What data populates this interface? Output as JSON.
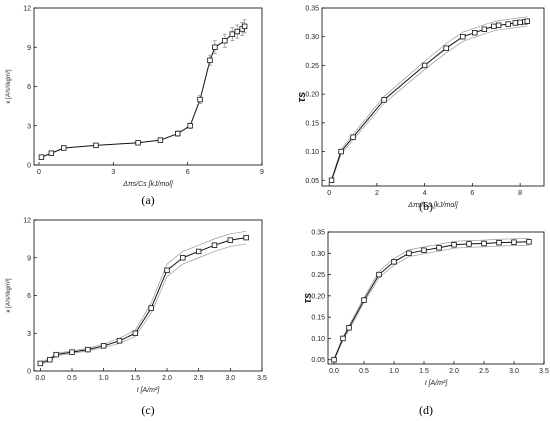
{
  "chart_data": [
    {
      "id": "a",
      "type": "line",
      "panel_label": "(a)",
      "xlabel": "Δπs/Cs [kJ/mol]",
      "ylabel": "κ [A²s³/kgm³]",
      "xlim": [
        -0.2,
        9
      ],
      "ylim": [
        0,
        12
      ],
      "xticks": [
        0,
        3,
        6,
        9
      ],
      "yticks": [
        0,
        3,
        6,
        9,
        12
      ],
      "x": [
        0.1,
        0.5,
        1.0,
        2.3,
        4.0,
        4.9,
        5.6,
        6.1,
        6.5,
        6.9,
        7.1,
        7.5,
        7.8,
        8.0,
        8.2,
        8.3
      ],
      "values": [
        0.6,
        0.9,
        1.3,
        1.5,
        1.7,
        1.9,
        2.4,
        3.0,
        5.0,
        8.0,
        9.0,
        9.5,
        10.0,
        10.2,
        10.4,
        10.6
      ],
      "band": [
        0.1,
        0.1,
        0.1,
        0.1,
        0.15,
        0.15,
        0.2,
        0.2,
        0.3,
        0.4,
        0.5,
        0.5,
        0.5,
        0.5,
        0.5,
        0.5
      ]
    },
    {
      "id": "b",
      "type": "line",
      "panel_label": "(b)",
      "xlabel": "Δπs/Cs [kJ/mol]",
      "ylabel": "τs",
      "xlim": [
        -0.3,
        9
      ],
      "ylim": [
        0.04,
        0.35
      ],
      "xticks": [
        0,
        2,
        4,
        6,
        8
      ],
      "yticks": [
        0.05,
        0.1,
        0.15,
        0.2,
        0.25,
        0.3,
        0.35
      ],
      "ytick_labels": [
        "0.05",
        "0.10",
        "0.15",
        "0.20",
        "0.25",
        "0.30",
        "0.35"
      ],
      "x": [
        0.1,
        0.5,
        1.0,
        2.3,
        4.0,
        4.9,
        5.6,
        6.1,
        6.5,
        6.9,
        7.1,
        7.5,
        7.8,
        8.0,
        8.2,
        8.3
      ],
      "values": [
        0.05,
        0.1,
        0.125,
        0.19,
        0.25,
        0.28,
        0.3,
        0.307,
        0.313,
        0.318,
        0.32,
        0.322,
        0.324,
        0.325,
        0.326,
        0.327
      ],
      "band": [
        0.002,
        0.004,
        0.005,
        0.006,
        0.007,
        0.008,
        0.008,
        0.008,
        0.008,
        0.008,
        0.008,
        0.008,
        0.008,
        0.008,
        0.008,
        0.008
      ]
    },
    {
      "id": "c",
      "type": "line",
      "panel_label": "(c)",
      "xlabel": "I [A/m²]",
      "ylabel": "κ [A²s³/kgm³]",
      "xlim": [
        -0.1,
        3.5
      ],
      "ylim": [
        0,
        12
      ],
      "xticks": [
        0.0,
        0.5,
        1.0,
        1.5,
        2.0,
        2.5,
        3.0,
        3.5
      ],
      "xtick_labels": [
        "0.0",
        "0.5",
        "1.0",
        "1.5",
        "2.0",
        "2.5",
        "3.0",
        "3.5"
      ],
      "yticks": [
        0,
        3,
        6,
        9,
        12
      ],
      "x": [
        0.0,
        0.15,
        0.25,
        0.5,
        0.75,
        1.0,
        1.25,
        1.5,
        1.75,
        2.0,
        2.25,
        2.5,
        2.75,
        3.0,
        3.25
      ],
      "values": [
        0.6,
        0.9,
        1.3,
        1.5,
        1.7,
        2.0,
        2.4,
        3.0,
        5.0,
        8.0,
        9.0,
        9.5,
        10.0,
        10.4,
        10.6
      ],
      "band": [
        0.1,
        0.1,
        0.1,
        0.1,
        0.1,
        0.15,
        0.2,
        0.25,
        0.4,
        0.5,
        0.5,
        0.5,
        0.5,
        0.5,
        0.5
      ]
    },
    {
      "id": "d",
      "type": "line",
      "panel_label": "(d)",
      "xlabel": "I [A/m²]",
      "ylabel": "τs",
      "xlim": [
        -0.1,
        3.5
      ],
      "ylim": [
        0.04,
        0.35
      ],
      "xticks": [
        0.0,
        0.5,
        1.0,
        1.5,
        2.0,
        2.5,
        3.0,
        3.5
      ],
      "xtick_labels": [
        "0.0",
        "0.5",
        "1.0",
        "1.5",
        "2.0",
        "2.5",
        "3.0",
        "3.5"
      ],
      "yticks": [
        0.05,
        0.1,
        0.15,
        0.2,
        0.25,
        0.3,
        0.35
      ],
      "ytick_labels": [
        "0.05",
        "0.10",
        "0.15",
        "0.20",
        "0.25",
        "0.30",
        "0.35"
      ],
      "x": [
        0.0,
        0.15,
        0.25,
        0.5,
        0.75,
        1.0,
        1.25,
        1.5,
        1.75,
        2.0,
        2.25,
        2.5,
        2.75,
        3.0,
        3.25
      ],
      "values": [
        0.05,
        0.1,
        0.125,
        0.19,
        0.25,
        0.28,
        0.3,
        0.307,
        0.313,
        0.32,
        0.322,
        0.323,
        0.325,
        0.326,
        0.327
      ],
      "band": [
        0.002,
        0.004,
        0.005,
        0.006,
        0.007,
        0.008,
        0.008,
        0.008,
        0.008,
        0.008,
        0.008,
        0.008,
        0.008,
        0.008,
        0.008
      ]
    }
  ]
}
